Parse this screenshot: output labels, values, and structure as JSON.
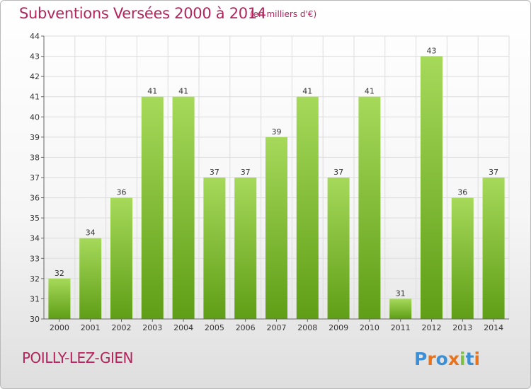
{
  "header": {
    "title": "Subventions Versées 2000 à 2014",
    "subtitle": "(en milliers d'€)"
  },
  "footer": {
    "town": "POILLY-LEZ-GIEN",
    "logo_text": "Proxiti"
  },
  "colors": {
    "accent": "#b3245c",
    "bar_top": "#a6d95a",
    "bar_bottom": "#5f9e16",
    "grid": "#dddddd"
  },
  "chart_data": {
    "type": "bar",
    "title": "Subventions Versées 2000 à 2014",
    "subtitle": "(en milliers d'€)",
    "xlabel": "",
    "ylabel": "",
    "categories": [
      "2000",
      "2001",
      "2002",
      "2003",
      "2004",
      "2005",
      "2006",
      "2007",
      "2008",
      "2009",
      "2010",
      "2011",
      "2012",
      "2013",
      "2014"
    ],
    "values": [
      32,
      34,
      36,
      41,
      41,
      37,
      37,
      39,
      41,
      37,
      41,
      31,
      43,
      36,
      37
    ],
    "ylim": [
      30,
      44
    ],
    "yticks": [
      30,
      31,
      32,
      33,
      34,
      35,
      36,
      37,
      38,
      39,
      40,
      41,
      42,
      43,
      44
    ],
    "grid": true,
    "legend": "none"
  }
}
